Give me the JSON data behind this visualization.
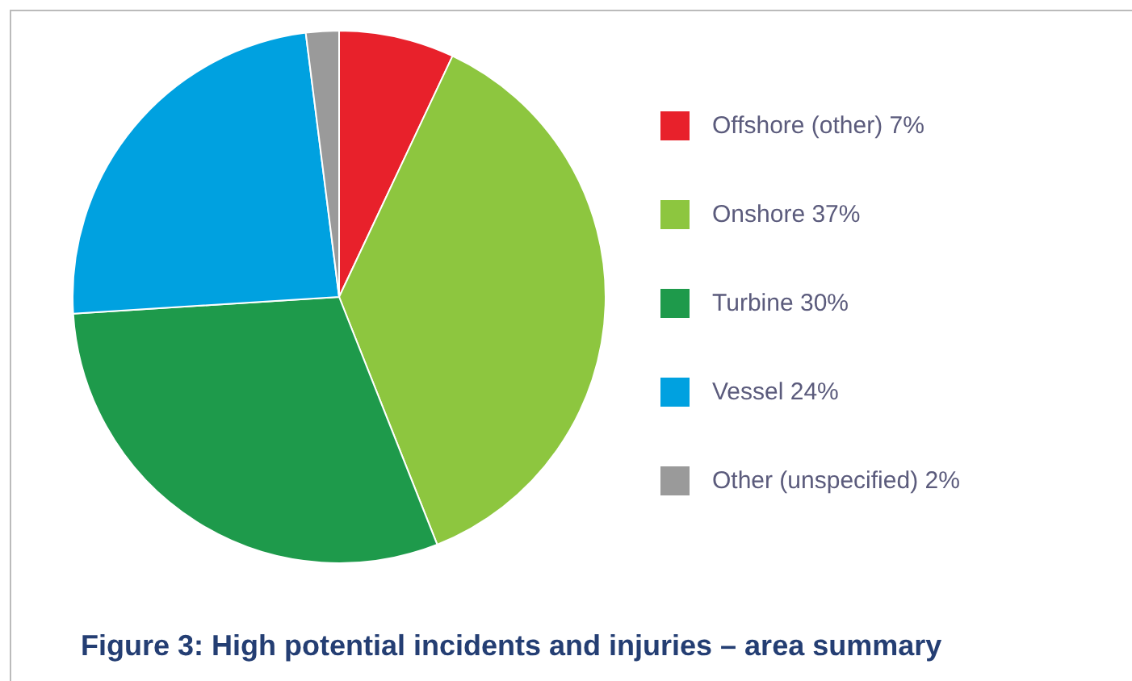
{
  "chart_data": {
    "type": "pie",
    "title": "Figure 3: High potential incidents and injuries – area summary",
    "categories": [
      "Offshore (other) 7%",
      "Onshore 37%",
      "Turbine 30%",
      "Vessel 24%",
      "Other (unspecified) 2%"
    ],
    "values": [
      7,
      37,
      30,
      24,
      2
    ],
    "colors": [
      "#e8212b",
      "#8dc63f",
      "#1e9a4b",
      "#00a1e0",
      "#9a9a9a"
    ],
    "legend": "right"
  }
}
